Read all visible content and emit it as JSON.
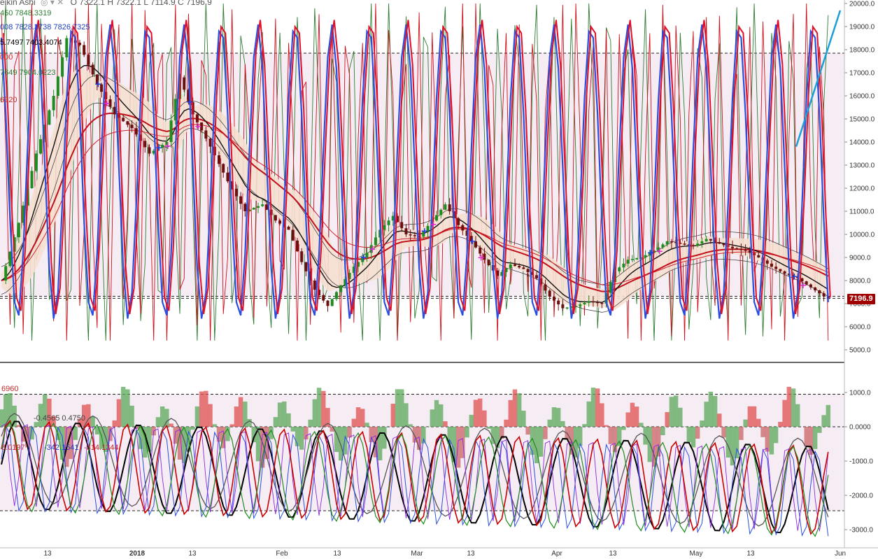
{
  "header": {
    "title": "eikin Ashi",
    "ohlc": "O 7322.1 H 7322.1 L 7114.9 C 7196.9"
  },
  "legend_upper": [
    {
      "text": "450  7848.3319",
      "color": "#2e7d32"
    },
    {
      "text": "008  7828.3738  7826.7325",
      "color": "#1f3fbf"
    },
    {
      "text": "5.7497  7403.4074",
      "color": "#000000"
    },
    {
      "text": "000",
      "color": "#d32f2f"
    },
    {
      "text": "7649  7904.0223",
      "color": "#2e7d32"
    },
    {
      "text": "6920",
      "color": "#c62828"
    }
  ],
  "legend_lower": [
    {
      "text": "6960",
      "color": "#c62828"
    },
    {
      "text": "-0.4565  0.4750",
      "color": "#444444"
    },
    {
      "text": "8.0197",
      "color": "#c62828"
    },
    {
      "text": "-342.1541",
      "color": "#1f3fbf"
    },
    {
      "text": "-314.1344",
      "color": "#c62828"
    }
  ],
  "last_price": "7196.9",
  "colors": {
    "up": "#1e8c1e",
    "down": "#6b0f0f",
    "stoch_blue": "#2a4fe0",
    "stoch_red": "#e0102a",
    "band_fill": "#f6e0d2",
    "bg_zone": "#f6ecf4"
  },
  "chart_data": [
    {
      "type": "candlestick",
      "title": "Heikin Ashi",
      "y_axis_ticks": [
        "20000.0",
        "19000.0",
        "18000.0",
        "17000.0",
        "16000.0",
        "15000.0",
        "14000.0",
        "13000.0",
        "12000.0",
        "11000.0",
        "10000.0",
        "9000.0",
        "8000.0",
        "7000.0",
        "6000.0",
        "5000.0"
      ],
      "ylim": [
        4700,
        20100
      ],
      "reference_lines": [
        17850,
        7320
      ],
      "x_ticks": [
        "13",
        "2018",
        "13",
        "Feb",
        "13",
        "Mar",
        "13",
        "Apr",
        "13",
        "May",
        "13",
        "Jun"
      ],
      "price_path": [
        [
          0,
          8000
        ],
        [
          4,
          10500
        ],
        [
          8,
          13500
        ],
        [
          12,
          16000
        ],
        [
          15,
          18500
        ],
        [
          18,
          18200
        ],
        [
          22,
          16500
        ],
        [
          26,
          15200
        ],
        [
          30,
          14600
        ],
        [
          34,
          13500
        ],
        [
          38,
          14000
        ],
        [
          41,
          16800
        ],
        [
          44,
          15200
        ],
        [
          48,
          13800
        ],
        [
          52,
          12300
        ],
        [
          56,
          11000
        ],
        [
          60,
          11300
        ],
        [
          63,
          10600
        ],
        [
          66,
          10200
        ],
        [
          69,
          8800
        ],
        [
          72,
          7600
        ],
        [
          75,
          6900
        ],
        [
          78,
          7800
        ],
        [
          81,
          8600
        ],
        [
          84,
          9200
        ],
        [
          87,
          10200
        ],
        [
          90,
          10800
        ],
        [
          93,
          10000
        ],
        [
          96,
          9900
        ],
        [
          99,
          10600
        ],
        [
          102,
          11300
        ],
        [
          105,
          10400
        ],
        [
          108,
          9700
        ],
        [
          111,
          8900
        ],
        [
          114,
          8200
        ],
        [
          117,
          8700
        ],
        [
          120,
          8500
        ],
        [
          123,
          8100
        ],
        [
          126,
          7300
        ],
        [
          129,
          6800
        ],
        [
          132,
          6900
        ],
        [
          135,
          7100
        ],
        [
          138,
          7000
        ],
        [
          141,
          8400
        ],
        [
          144,
          8900
        ],
        [
          147,
          9000
        ],
        [
          150,
          9300
        ],
        [
          153,
          9700
        ],
        [
          156,
          9600
        ],
        [
          159,
          9500
        ],
        [
          162,
          9800
        ],
        [
          165,
          9600
        ],
        [
          168,
          9400
        ],
        [
          171,
          9300
        ],
        [
          174,
          9000
        ],
        [
          177,
          8600
        ],
        [
          180,
          8300
        ],
        [
          183,
          8100
        ],
        [
          186,
          7700
        ],
        [
          190,
          7200
        ]
      ],
      "signals_blue_x": [
        22,
        36,
        43,
        83,
        97,
        108,
        149,
        182
      ],
      "signals_magenta_x": [
        24,
        38,
        45,
        85,
        99,
        110,
        151,
        184
      ]
    },
    {
      "type": "oscillator",
      "y_axis_ticks": [
        "1000.0",
        "0.0000",
        "-1000.0",
        "-2000.0",
        "-3000.0"
      ],
      "ylim": [
        -3200,
        1900
      ],
      "reference_lines": [
        950,
        0,
        -2450
      ]
    }
  ]
}
